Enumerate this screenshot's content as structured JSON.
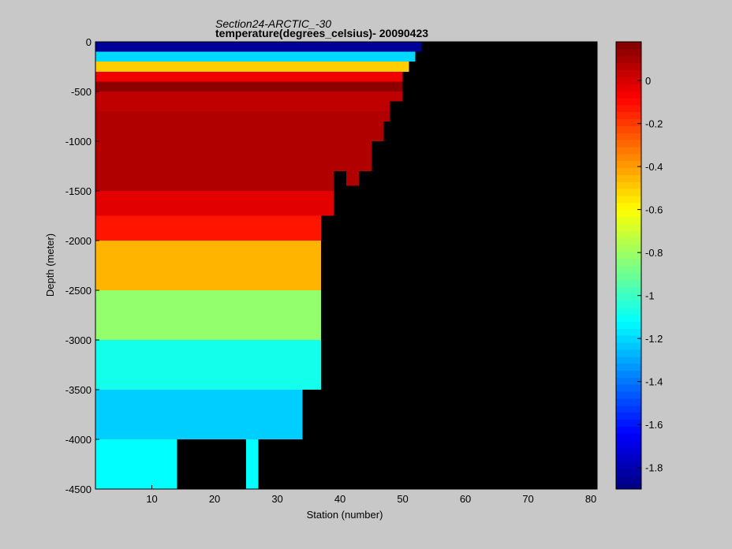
{
  "chart_data": {
    "type": "heatmap",
    "title": "Section24-ARCTIC_-30",
    "subtitle": "temperature(degrees_celsius)- 20090423",
    "xlabel": "Station (number)",
    "ylabel": "Depth (meter)",
    "xlim": [
      1,
      81
    ],
    "ylim": [
      -4500,
      0
    ],
    "xticks": [
      "10",
      "20",
      "30",
      "40",
      "50",
      "60",
      "70",
      "80"
    ],
    "yticks": [
      "0",
      "-500",
      "-1000",
      "-1500",
      "-2000",
      "-2500",
      "-3000",
      "-3500",
      "-4000",
      "-4500"
    ],
    "colorbar": {
      "range": [
        -1.9,
        0.18
      ],
      "ticks": [
        "0",
        "-0.2",
        "-0.4",
        "-0.6",
        "-0.8",
        "-1",
        "-1.2",
        "-1.4",
        "-1.6",
        "-1.8"
      ],
      "colormap": "jet"
    },
    "background_color": "#000000",
    "depth_layers": [
      {
        "top": 0,
        "bottom": -100,
        "value": -1.85
      },
      {
        "top": -100,
        "bottom": -200,
        "value": -1.2
      },
      {
        "top": -200,
        "bottom": -300,
        "value": -0.5
      },
      {
        "top": -300,
        "bottom": -400,
        "value": -0.05
      },
      {
        "top": -400,
        "bottom": -500,
        "value": 0.15
      },
      {
        "top": -500,
        "bottom": -700,
        "value": 0.05
      },
      {
        "top": -700,
        "bottom": -1500,
        "value": 0.08
      },
      {
        "top": -1500,
        "bottom": -1750,
        "value": -0.02
      },
      {
        "top": -1750,
        "bottom": -2000,
        "value": -0.12
      },
      {
        "top": -2000,
        "bottom": -2500,
        "value": -0.45
      },
      {
        "top": -2500,
        "bottom": -3000,
        "value": -0.82
      },
      {
        "top": -3000,
        "bottom": -3500,
        "value": -1.08
      },
      {
        "top": -3500,
        "bottom": -4000,
        "value": -1.22
      },
      {
        "top": -4000,
        "bottom": -4500,
        "value": -1.12
      }
    ],
    "bottom_depth_by_station": [
      {
        "from": 1,
        "to": 14,
        "depth": -4500
      },
      {
        "from": 14,
        "to": 25,
        "depth": -4000
      },
      {
        "from": 25,
        "to": 27,
        "depth": -4500
      },
      {
        "from": 27,
        "to": 34,
        "depth": -4000
      },
      {
        "from": 34,
        "to": 37,
        "depth": -3500
      },
      {
        "from": 37,
        "to": 39,
        "depth": -1750
      },
      {
        "from": 39,
        "to": 41,
        "depth": -1300
      },
      {
        "from": 41,
        "to": 43,
        "depth": -1450
      },
      {
        "from": 43,
        "to": 45,
        "depth": -1300
      },
      {
        "from": 45,
        "to": 47,
        "depth": -1000
      },
      {
        "from": 47,
        "to": 48,
        "depth": -800
      },
      {
        "from": 48,
        "to": 50,
        "depth": -600
      },
      {
        "from": 50,
        "to": 51,
        "depth": -300
      },
      {
        "from": 51,
        "to": 52,
        "depth": -200
      },
      {
        "from": 52,
        "to": 53,
        "depth": -100
      }
    ]
  }
}
